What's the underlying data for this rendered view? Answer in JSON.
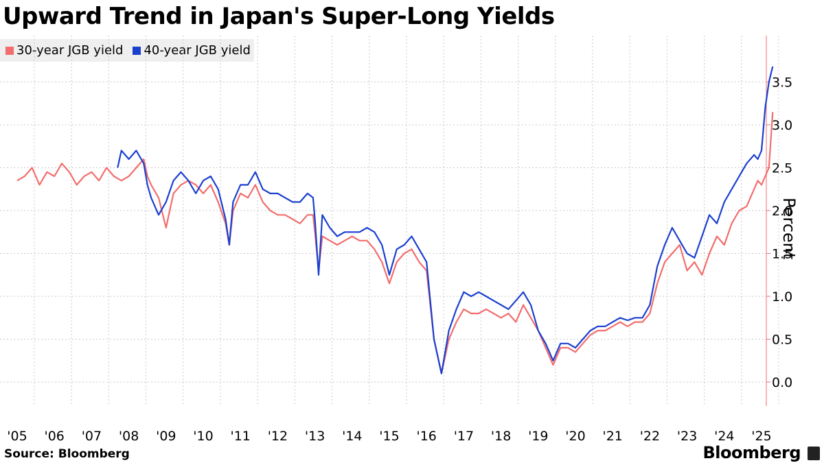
{
  "title": "Upward Trend in Japan's Super-Long Yields",
  "source": "Source: Bloomberg",
  "brand": "Bloomberg",
  "chart_data": {
    "type": "line",
    "title": "Upward Trend in Japan's Super-Long Yields",
    "ylabel": "Percent",
    "xlabel": "",
    "ylim": [
      -0.3,
      4.0
    ],
    "xlim": [
      2005.0,
      2025.4
    ],
    "y_ticks": [
      0.0,
      0.5,
      1.0,
      1.5,
      2.0,
      2.5,
      3.0,
      3.5
    ],
    "y_tick_labels": [
      "0.0",
      "0.5",
      "1.0",
      "1.5",
      "2.0",
      "2.5",
      "3.0",
      "3.5"
    ],
    "x_ticks": [
      2005.0,
      2006.0,
      2007.0,
      2008.0,
      2009.0,
      2010.0,
      2011.0,
      2012.0,
      2013.0,
      2014.0,
      2015.0,
      2016.0,
      2017.0,
      2018.0,
      2019.0,
      2020.0,
      2021.0,
      2022.0,
      2023.0,
      2024.0,
      2025.0
    ],
    "x_tick_labels": [
      "'05",
      "'06",
      "'07",
      "'08",
      "'09",
      "'10",
      "'11",
      "'12",
      "'13",
      "'14",
      "'15",
      "'16",
      "'17",
      "'18",
      "'19",
      "'20",
      "'21",
      "'22",
      "'23",
      "'24",
      "'25"
    ],
    "y_axis_position": "right",
    "grid": true,
    "legend_position": "top-left",
    "series": [
      {
        "name": "30-year JGB yield",
        "color": "#f26d6d",
        "x": [
          2005.0,
          2005.2,
          2005.4,
          2005.6,
          2005.8,
          2006.0,
          2006.2,
          2006.4,
          2006.6,
          2006.8,
          2007.0,
          2007.2,
          2007.4,
          2007.6,
          2007.8,
          2008.0,
          2008.2,
          2008.4,
          2008.5,
          2008.6,
          2008.8,
          2009.0,
          2009.2,
          2009.4,
          2009.6,
          2009.8,
          2010.0,
          2010.2,
          2010.4,
          2010.6,
          2010.7,
          2010.8,
          2011.0,
          2011.2,
          2011.4,
          2011.6,
          2011.8,
          2012.0,
          2012.2,
          2012.4,
          2012.6,
          2012.8,
          2012.95,
          2013.0,
          2013.1,
          2013.2,
          2013.4,
          2013.6,
          2013.8,
          2014.0,
          2014.2,
          2014.4,
          2014.6,
          2014.8,
          2015.0,
          2015.2,
          2015.4,
          2015.6,
          2015.8,
          2016.0,
          2016.2,
          2016.4,
          2016.6,
          2016.8,
          2017.0,
          2017.2,
          2017.4,
          2017.6,
          2017.8,
          2018.0,
          2018.2,
          2018.4,
          2018.6,
          2018.8,
          2019.0,
          2019.2,
          2019.4,
          2019.6,
          2019.8,
          2020.0,
          2020.2,
          2020.4,
          2020.6,
          2020.8,
          2021.0,
          2021.2,
          2021.4,
          2021.6,
          2021.8,
          2022.0,
          2022.2,
          2022.4,
          2022.6,
          2022.8,
          2023.0,
          2023.2,
          2023.4,
          2023.6,
          2023.8,
          2024.0,
          2024.2,
          2024.4,
          2024.6,
          2024.8,
          2024.9,
          2025.0,
          2025.1,
          2025.2,
          2025.3
        ],
        "y": [
          2.35,
          2.4,
          2.5,
          2.3,
          2.45,
          2.4,
          2.55,
          2.45,
          2.3,
          2.4,
          2.45,
          2.35,
          2.5,
          2.4,
          2.35,
          2.4,
          2.5,
          2.6,
          2.4,
          2.3,
          2.15,
          1.8,
          2.2,
          2.3,
          2.35,
          2.3,
          2.2,
          2.3,
          2.1,
          1.85,
          1.6,
          2.0,
          2.2,
          2.15,
          2.3,
          2.1,
          2.0,
          1.95,
          1.95,
          1.9,
          1.85,
          1.95,
          1.95,
          1.75,
          1.3,
          1.7,
          1.65,
          1.6,
          1.65,
          1.7,
          1.65,
          1.65,
          1.55,
          1.4,
          1.15,
          1.4,
          1.5,
          1.55,
          1.4,
          1.3,
          0.5,
          0.1,
          0.5,
          0.7,
          0.85,
          0.8,
          0.8,
          0.85,
          0.8,
          0.75,
          0.8,
          0.7,
          0.9,
          0.75,
          0.6,
          0.4,
          0.2,
          0.4,
          0.4,
          0.35,
          0.45,
          0.55,
          0.6,
          0.6,
          0.65,
          0.7,
          0.65,
          0.7,
          0.7,
          0.8,
          1.15,
          1.4,
          1.5,
          1.6,
          1.3,
          1.4,
          1.25,
          1.5,
          1.7,
          1.6,
          1.85,
          2.0,
          2.05,
          2.25,
          2.35,
          2.3,
          2.4,
          2.5,
          3.15
        ]
      },
      {
        "name": "40-year JGB yield",
        "color": "#1a3fcf",
        "x": [
          2007.7,
          2007.8,
          2008.0,
          2008.2,
          2008.4,
          2008.5,
          2008.6,
          2008.8,
          2009.0,
          2009.2,
          2009.4,
          2009.6,
          2009.8,
          2010.0,
          2010.2,
          2010.4,
          2010.6,
          2010.7,
          2010.8,
          2011.0,
          2011.2,
          2011.4,
          2011.6,
          2011.8,
          2012.0,
          2012.2,
          2012.4,
          2012.6,
          2012.8,
          2012.95,
          2013.0,
          2013.1,
          2013.2,
          2013.4,
          2013.6,
          2013.8,
          2014.0,
          2014.2,
          2014.4,
          2014.6,
          2014.8,
          2015.0,
          2015.2,
          2015.4,
          2015.6,
          2015.8,
          2016.0,
          2016.2,
          2016.4,
          2016.6,
          2016.8,
          2017.0,
          2017.2,
          2017.4,
          2017.6,
          2017.8,
          2018.0,
          2018.2,
          2018.4,
          2018.6,
          2018.8,
          2019.0,
          2019.2,
          2019.4,
          2019.6,
          2019.8,
          2020.0,
          2020.2,
          2020.4,
          2020.6,
          2020.8,
          2021.0,
          2021.2,
          2021.4,
          2021.6,
          2021.8,
          2022.0,
          2022.2,
          2022.4,
          2022.6,
          2022.8,
          2023.0,
          2023.2,
          2023.4,
          2023.6,
          2023.8,
          2024.0,
          2024.2,
          2024.4,
          2024.6,
          2024.8,
          2024.9,
          2025.0,
          2025.1,
          2025.2,
          2025.3
        ],
        "y": [
          2.5,
          2.7,
          2.6,
          2.7,
          2.55,
          2.3,
          2.15,
          1.95,
          2.1,
          2.35,
          2.45,
          2.35,
          2.2,
          2.35,
          2.4,
          2.25,
          1.9,
          1.6,
          2.1,
          2.3,
          2.3,
          2.45,
          2.25,
          2.2,
          2.2,
          2.15,
          2.1,
          2.1,
          2.2,
          2.15,
          1.9,
          1.25,
          1.95,
          1.8,
          1.7,
          1.75,
          1.75,
          1.75,
          1.8,
          1.75,
          1.6,
          1.25,
          1.55,
          1.6,
          1.7,
          1.55,
          1.4,
          0.5,
          0.1,
          0.6,
          0.85,
          1.05,
          1.0,
          1.05,
          1.0,
          0.95,
          0.9,
          0.85,
          0.95,
          1.05,
          0.9,
          0.6,
          0.45,
          0.25,
          0.45,
          0.45,
          0.4,
          0.5,
          0.6,
          0.65,
          0.65,
          0.7,
          0.75,
          0.72,
          0.75,
          0.75,
          0.9,
          1.35,
          1.6,
          1.8,
          1.65,
          1.5,
          1.45,
          1.7,
          1.95,
          1.85,
          2.1,
          2.25,
          2.4,
          2.55,
          2.65,
          2.6,
          2.7,
          3.2,
          3.5,
          3.68
        ]
      }
    ]
  }
}
